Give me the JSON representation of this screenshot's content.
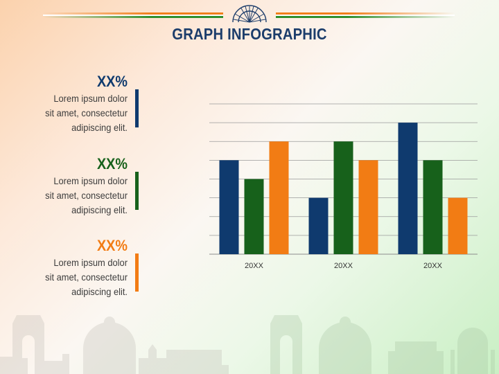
{
  "slide": {
    "title": "GRAPH INFOGRAPHIC",
    "colors": {
      "navy": "#0f3a6e",
      "green": "#17611b",
      "orange": "#f27c14",
      "title": "#1c3d6b"
    }
  },
  "stats": [
    {
      "value": "XX%",
      "text_lines": [
        "Lorem ipsum dolor",
        "sit amet, consectetur",
        "adipiscing elit."
      ],
      "color": "#0f3a6e"
    },
    {
      "value": "XX%",
      "text_lines": [
        "Lorem ipsum dolor",
        "sit amet, consectetur",
        "adipiscing elit."
      ],
      "color": "#17611b"
    },
    {
      "value": "XX%",
      "text_lines": [
        "Lorem ipsum dolor",
        "sit amet, consectetur",
        "adipiscing elit."
      ],
      "color": "#f27c14"
    }
  ],
  "chart_data": {
    "type": "bar",
    "categories": [
      "20XX",
      "20XX",
      "20XX"
    ],
    "series": [
      {
        "values": [
          5,
          3,
          7
        ],
        "color": "#0f3a6e"
      },
      {
        "values": [
          4,
          6,
          5
        ],
        "color": "#17611b"
      },
      {
        "values": [
          6,
          5,
          3
        ],
        "color": "#f27c14"
      }
    ],
    "ylim": [
      0,
      8
    ],
    "grid": true,
    "y_ticks_shown": false,
    "legend": "none"
  }
}
